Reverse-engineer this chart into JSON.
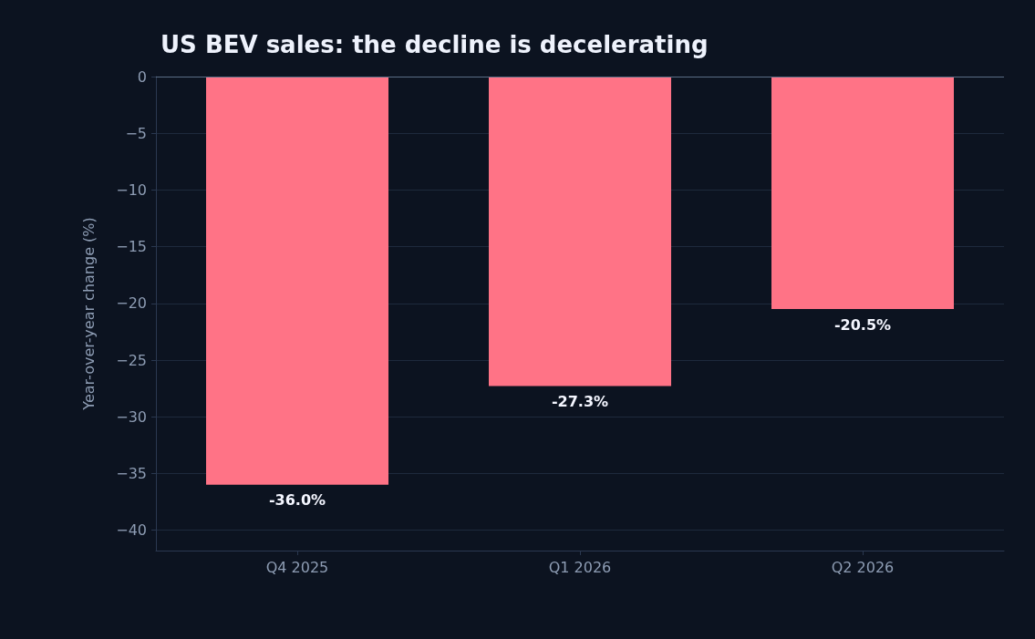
{
  "chart_data": {
    "type": "bar",
    "title": "US BEV sales: the decline is decelerating",
    "ylabel": "Year-over-year change (%)",
    "categories": [
      "Q4 2025",
      "Q1 2026",
      "Q2 2026"
    ],
    "values": [
      -36.0,
      -27.3,
      -20.5
    ],
    "value_labels": [
      "-36.0%",
      "-27.3%",
      "-20.5%"
    ],
    "color": "#ff7386",
    "ylim": [
      -41.8,
      0
    ],
    "yticks": [
      0,
      {
        "value": -5,
        "label": "−5"
      },
      {
        "value": -10,
        "label": "−10"
      },
      {
        "value": -15,
        "label": "−15"
      },
      {
        "value": -20,
        "label": "−20"
      },
      {
        "value": -25,
        "label": "−25"
      },
      {
        "value": -30,
        "label": "−30"
      },
      {
        "value": -35,
        "label": "−35"
      },
      {
        "value": -40,
        "label": "−40"
      }
    ],
    "grid": "y",
    "ref_lines": [
      {
        "axis": "y",
        "value": 0,
        "color": "#5b6d86"
      }
    ]
  }
}
